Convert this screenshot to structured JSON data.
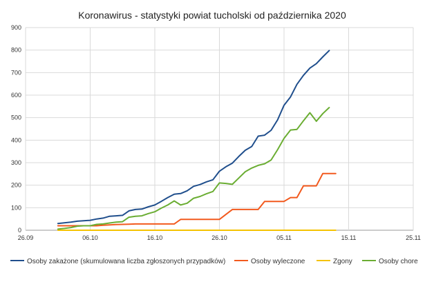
{
  "chart_data": {
    "type": "line",
    "title": "Koronawirus - statystyki powiat tucholski od października 2020",
    "xlabel": "",
    "ylabel": "",
    "x_start": "2020-09-26",
    "x_end": "2020-11-25",
    "xticks": [
      {
        "label": "26.09",
        "date": "2020-09-26"
      },
      {
        "label": "06.10",
        "date": "2020-10-06"
      },
      {
        "label": "16.10",
        "date": "2020-10-16"
      },
      {
        "label": "26.10",
        "date": "2020-10-26"
      },
      {
        "label": "05.11",
        "date": "2020-11-05"
      },
      {
        "label": "15.11",
        "date": "2020-11-15"
      },
      {
        "label": "25.11",
        "date": "2020-11-25"
      }
    ],
    "ylim": [
      0,
      900
    ],
    "yticks": [
      0,
      100,
      200,
      300,
      400,
      500,
      600,
      700,
      800,
      900
    ],
    "grid": true,
    "legend_position": "bottom",
    "x": [
      "2020-10-01",
      "2020-10-02",
      "2020-10-03",
      "2020-10-04",
      "2020-10-05",
      "2020-10-06",
      "2020-10-07",
      "2020-10-08",
      "2020-10-09",
      "2020-10-10",
      "2020-10-11",
      "2020-10-12",
      "2020-10-13",
      "2020-10-14",
      "2020-10-15",
      "2020-10-16",
      "2020-10-17",
      "2020-10-18",
      "2020-10-19",
      "2020-10-20",
      "2020-10-21",
      "2020-10-22",
      "2020-10-23",
      "2020-10-24",
      "2020-10-25",
      "2020-10-26",
      "2020-10-27",
      "2020-10-28",
      "2020-10-29",
      "2020-10-30",
      "2020-10-31",
      "2020-11-01",
      "2020-11-02",
      "2020-11-03",
      "2020-11-04",
      "2020-11-05",
      "2020-11-06",
      "2020-11-07",
      "2020-11-08",
      "2020-11-09",
      "2020-11-10",
      "2020-11-11",
      "2020-11-12",
      "2020-11-13",
      "2020-11-14"
    ],
    "series": [
      {
        "name": "Osoby zakażone (skumulowana liczba zgłoszonych przypadków)",
        "color": "#1f4e8c",
        "values": [
          30,
          33,
          36,
          40,
          42,
          44,
          50,
          54,
          62,
          64,
          66,
          86,
          92,
          94,
          104,
          112,
          128,
          145,
          160,
          163,
          175,
          195,
          203,
          215,
          224,
          262,
          282,
          298,
          328,
          355,
          372,
          418,
          422,
          444,
          490,
          555,
          592,
          648,
          688,
          720,
          740,
          770,
          798,
          null,
          null
        ]
      },
      {
        "name": "Osoby wyleczone",
        "color": "#f2591d",
        "values": [
          20,
          20,
          20,
          20,
          20,
          20,
          20,
          22,
          24,
          25,
          26,
          27,
          28,
          28,
          28,
          28,
          28,
          28,
          28,
          48,
          48,
          48,
          48,
          48,
          48,
          48,
          70,
          92,
          92,
          92,
          92,
          92,
          128,
          128,
          128,
          128,
          145,
          145,
          197,
          197,
          197,
          252,
          252,
          252,
          null
        ]
      },
      {
        "name": "Zgony",
        "color": "#f5c200",
        "values": [
          0,
          0,
          0,
          0,
          0,
          0,
          0,
          0,
          0,
          0,
          0,
          0,
          0,
          0,
          0,
          0,
          0,
          0,
          0,
          0,
          0,
          0,
          0,
          0,
          0,
          0,
          0,
          0,
          0,
          0,
          0,
          0,
          0,
          0,
          0,
          0,
          0,
          0,
          0,
          0,
          0,
          0,
          0,
          0,
          null
        ]
      },
      {
        "name": "Osoby chore",
        "color": "#6aad32",
        "values": [
          5,
          8,
          12,
          18,
          20,
          20,
          26,
          28,
          32,
          36,
          38,
          58,
          62,
          64,
          74,
          82,
          98,
          112,
          130,
          112,
          120,
          142,
          150,
          162,
          172,
          210,
          208,
          204,
          232,
          260,
          276,
          288,
          295,
          312,
          358,
          408,
          445,
          448,
          486,
          522,
          484,
          518,
          545,
          null,
          null
        ]
      }
    ]
  }
}
